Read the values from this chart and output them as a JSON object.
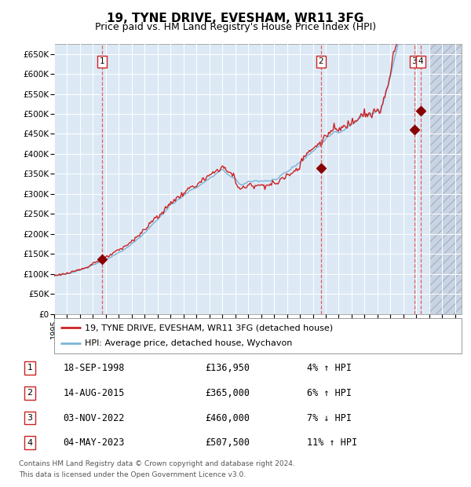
{
  "title": "19, TYNE DRIVE, EVESHAM, WR11 3FG",
  "subtitle": "Price paid vs. HM Land Registry's House Price Index (HPI)",
  "title_fontsize": 11,
  "subtitle_fontsize": 9,
  "background_color": "#dce9f5",
  "grid_color": "#ffffff",
  "hpi_line_color": "#7ab4d8",
  "price_line_color": "#cc2222",
  "marker_color": "#880000",
  "dashed_line_color": "#e06060",
  "hatch_start": 2024.0,
  "ylim": [
    0,
    675000
  ],
  "yticks": [
    0,
    50000,
    100000,
    150000,
    200000,
    250000,
    300000,
    350000,
    400000,
    450000,
    500000,
    550000,
    600000,
    650000
  ],
  "xlim_start": 1995.0,
  "xlim_end": 2026.5,
  "sales": [
    {
      "num": 1,
      "year_x": 1998.72,
      "price": 136950
    },
    {
      "num": 2,
      "year_x": 2015.62,
      "price": 365000
    },
    {
      "num": 3,
      "year_x": 2022.84,
      "price": 460000
    },
    {
      "num": 4,
      "year_x": 2023.34,
      "price": 507500
    }
  ],
  "legend_label_price": "19, TYNE DRIVE, EVESHAM, WR11 3FG (detached house)",
  "legend_label_hpi": "HPI: Average price, detached house, Wychavon",
  "footer_line1": "Contains HM Land Registry data © Crown copyright and database right 2024.",
  "footer_line2": "This data is licensed under the Open Government Licence v3.0.",
  "table_rows": [
    {
      "num": 1,
      "date": "18-SEP-1998",
      "price": "£136,950",
      "pct": "4% ↑ HPI"
    },
    {
      "num": 2,
      "date": "14-AUG-2015",
      "price": "£365,000",
      "pct": "6% ↑ HPI"
    },
    {
      "num": 3,
      "date": "03-NOV-2022",
      "price": "£460,000",
      "pct": "7% ↓ HPI"
    },
    {
      "num": 4,
      "date": "04-MAY-2023",
      "price": "£507,500",
      "pct": "11% ↑ HPI"
    }
  ]
}
